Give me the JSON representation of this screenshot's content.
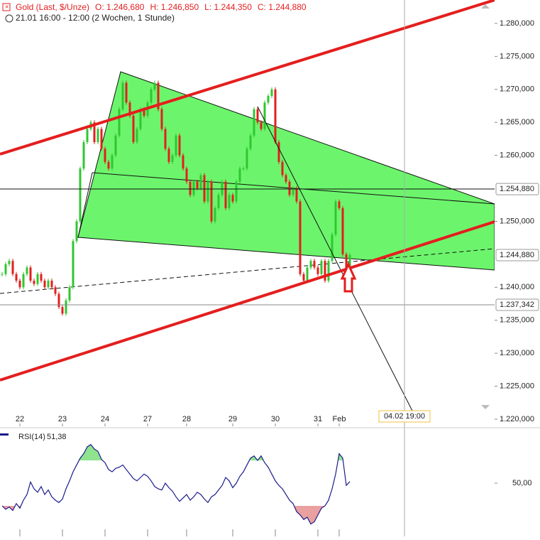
{
  "chart_data": [
    {
      "type": "candlestick",
      "title": "Gold (Last, $/Unze)",
      "ohlc_labels": [
        "O: 1.246,680",
        "H: 1.246,850",
        "L: 1.244,350",
        "C: 1.244,880"
      ],
      "subtitle": "21.01 16:00 - 12:00 (2 Wochen, 1 Stunde)",
      "series": [
        {
          "name": "Gold",
          "values": [
            1242,
            1243.5,
            1244,
            1242,
            1241,
            1240,
            1242,
            1243,
            1241,
            1240.5,
            1242,
            1241,
            1240,
            1241,
            1240,
            1239,
            1237,
            1236,
            1238,
            1240,
            1247,
            1250,
            1258,
            1262,
            1264,
            1265,
            1262,
            1264,
            1261,
            1259,
            1258,
            1260,
            1263,
            1267,
            1271,
            1268,
            1266,
            1262,
            1264,
            1267,
            1266,
            1268,
            1270,
            1271,
            1267,
            1264,
            1261,
            1259,
            1260,
            1263,
            1260,
            1258,
            1256,
            1254,
            1256,
            1255,
            1257,
            1253,
            1256,
            1250,
            1252,
            1254,
            1256,
            1252,
            1254,
            1253,
            1256,
            1258,
            1258,
            1261,
            1263,
            1267,
            1265,
            1264,
            1268,
            1269,
            1270,
            1262,
            1259,
            1257,
            1256,
            1254,
            1255,
            1253,
            1242,
            1241,
            1243,
            1244,
            1243,
            1242,
            1244,
            1241,
            1244,
            1248,
            1253,
            1252,
            1245,
            1242,
            1244.88
          ]
        }
      ],
      "up_color": "#2fc72f",
      "down_color": "#e21f1f",
      "xlim": [
        0,
        139
      ],
      "xticks": [
        {
          "value": 5,
          "label": "22"
        },
        {
          "value": 17,
          "label": "23"
        },
        {
          "value": 29,
          "label": "24"
        },
        {
          "value": 41,
          "label": "27"
        },
        {
          "value": 52,
          "label": "28"
        },
        {
          "value": 65,
          "label": "29"
        },
        {
          "value": 77,
          "label": "30"
        },
        {
          "value": 89,
          "label": "31"
        },
        {
          "value": 95,
          "label": "Feb"
        }
      ],
      "ylim": [
        1218.92,
        1283.55
      ],
      "yticks": [
        {
          "value": 1280,
          "label": "1.280,000"
        },
        {
          "value": 1275,
          "label": "1.275,000"
        },
        {
          "value": 1270,
          "label": "1.270,000"
        },
        {
          "value": 1265,
          "label": "1.265,000"
        },
        {
          "value": 1260,
          "label": "1.260,000"
        },
        {
          "value": 1250,
          "label": "1.250,000"
        },
        {
          "value": 1240,
          "label": "1.240,000"
        },
        {
          "value": 1235,
          "label": "1.235,000"
        },
        {
          "value": 1230,
          "label": "1.230,000"
        },
        {
          "value": 1225,
          "label": "1.225,000"
        },
        {
          "value": 1220,
          "label": "1.220,000"
        }
      ],
      "price_markers": [
        {
          "value": 1254.88,
          "label": "1.254,880"
        },
        {
          "value": 1244.88,
          "label": "1.244,880"
        },
        {
          "value": 1237.342,
          "label": "1.237,342"
        }
      ],
      "crosshair_label": "04.02 19:00"
    },
    {
      "type": "line",
      "series": [
        {
          "name": "RSI(14)",
          "color": "#1a1a8c",
          "values": [
            30,
            27,
            29,
            26,
            32,
            28,
            35,
            40,
            51,
            45,
            42,
            47,
            40,
            44,
            38,
            35,
            33,
            36,
            45,
            52,
            60,
            66,
            72,
            76,
            82,
            84,
            80,
            78,
            71,
            68,
            62,
            60,
            63,
            64,
            66,
            62,
            58,
            54,
            52,
            55,
            58,
            56,
            52,
            47,
            45,
            44,
            50,
            46,
            43,
            38,
            34,
            37,
            40,
            35,
            38,
            42,
            40,
            36,
            33,
            38,
            40,
            44,
            48,
            55,
            52,
            46,
            50,
            56,
            60,
            66,
            72,
            74,
            70,
            74,
            68,
            64,
            58,
            52,
            48,
            45,
            40,
            35,
            32,
            25,
            22,
            18,
            20,
            14,
            16,
            22,
            28,
            30,
            35,
            45,
            58,
            76,
            72,
            48,
            51.38
          ]
        }
      ],
      "current_label": "51,38",
      "xlim": [
        0,
        139
      ],
      "ylim": [
        3.1,
        96.9
      ],
      "yticks": [
        {
          "value": 50,
          "label": "50,00"
        }
      ],
      "upper_level": 70,
      "lower_level": 30,
      "upper_fill": "#8fe38f",
      "lower_fill": "#eaa0a0"
    }
  ]
}
